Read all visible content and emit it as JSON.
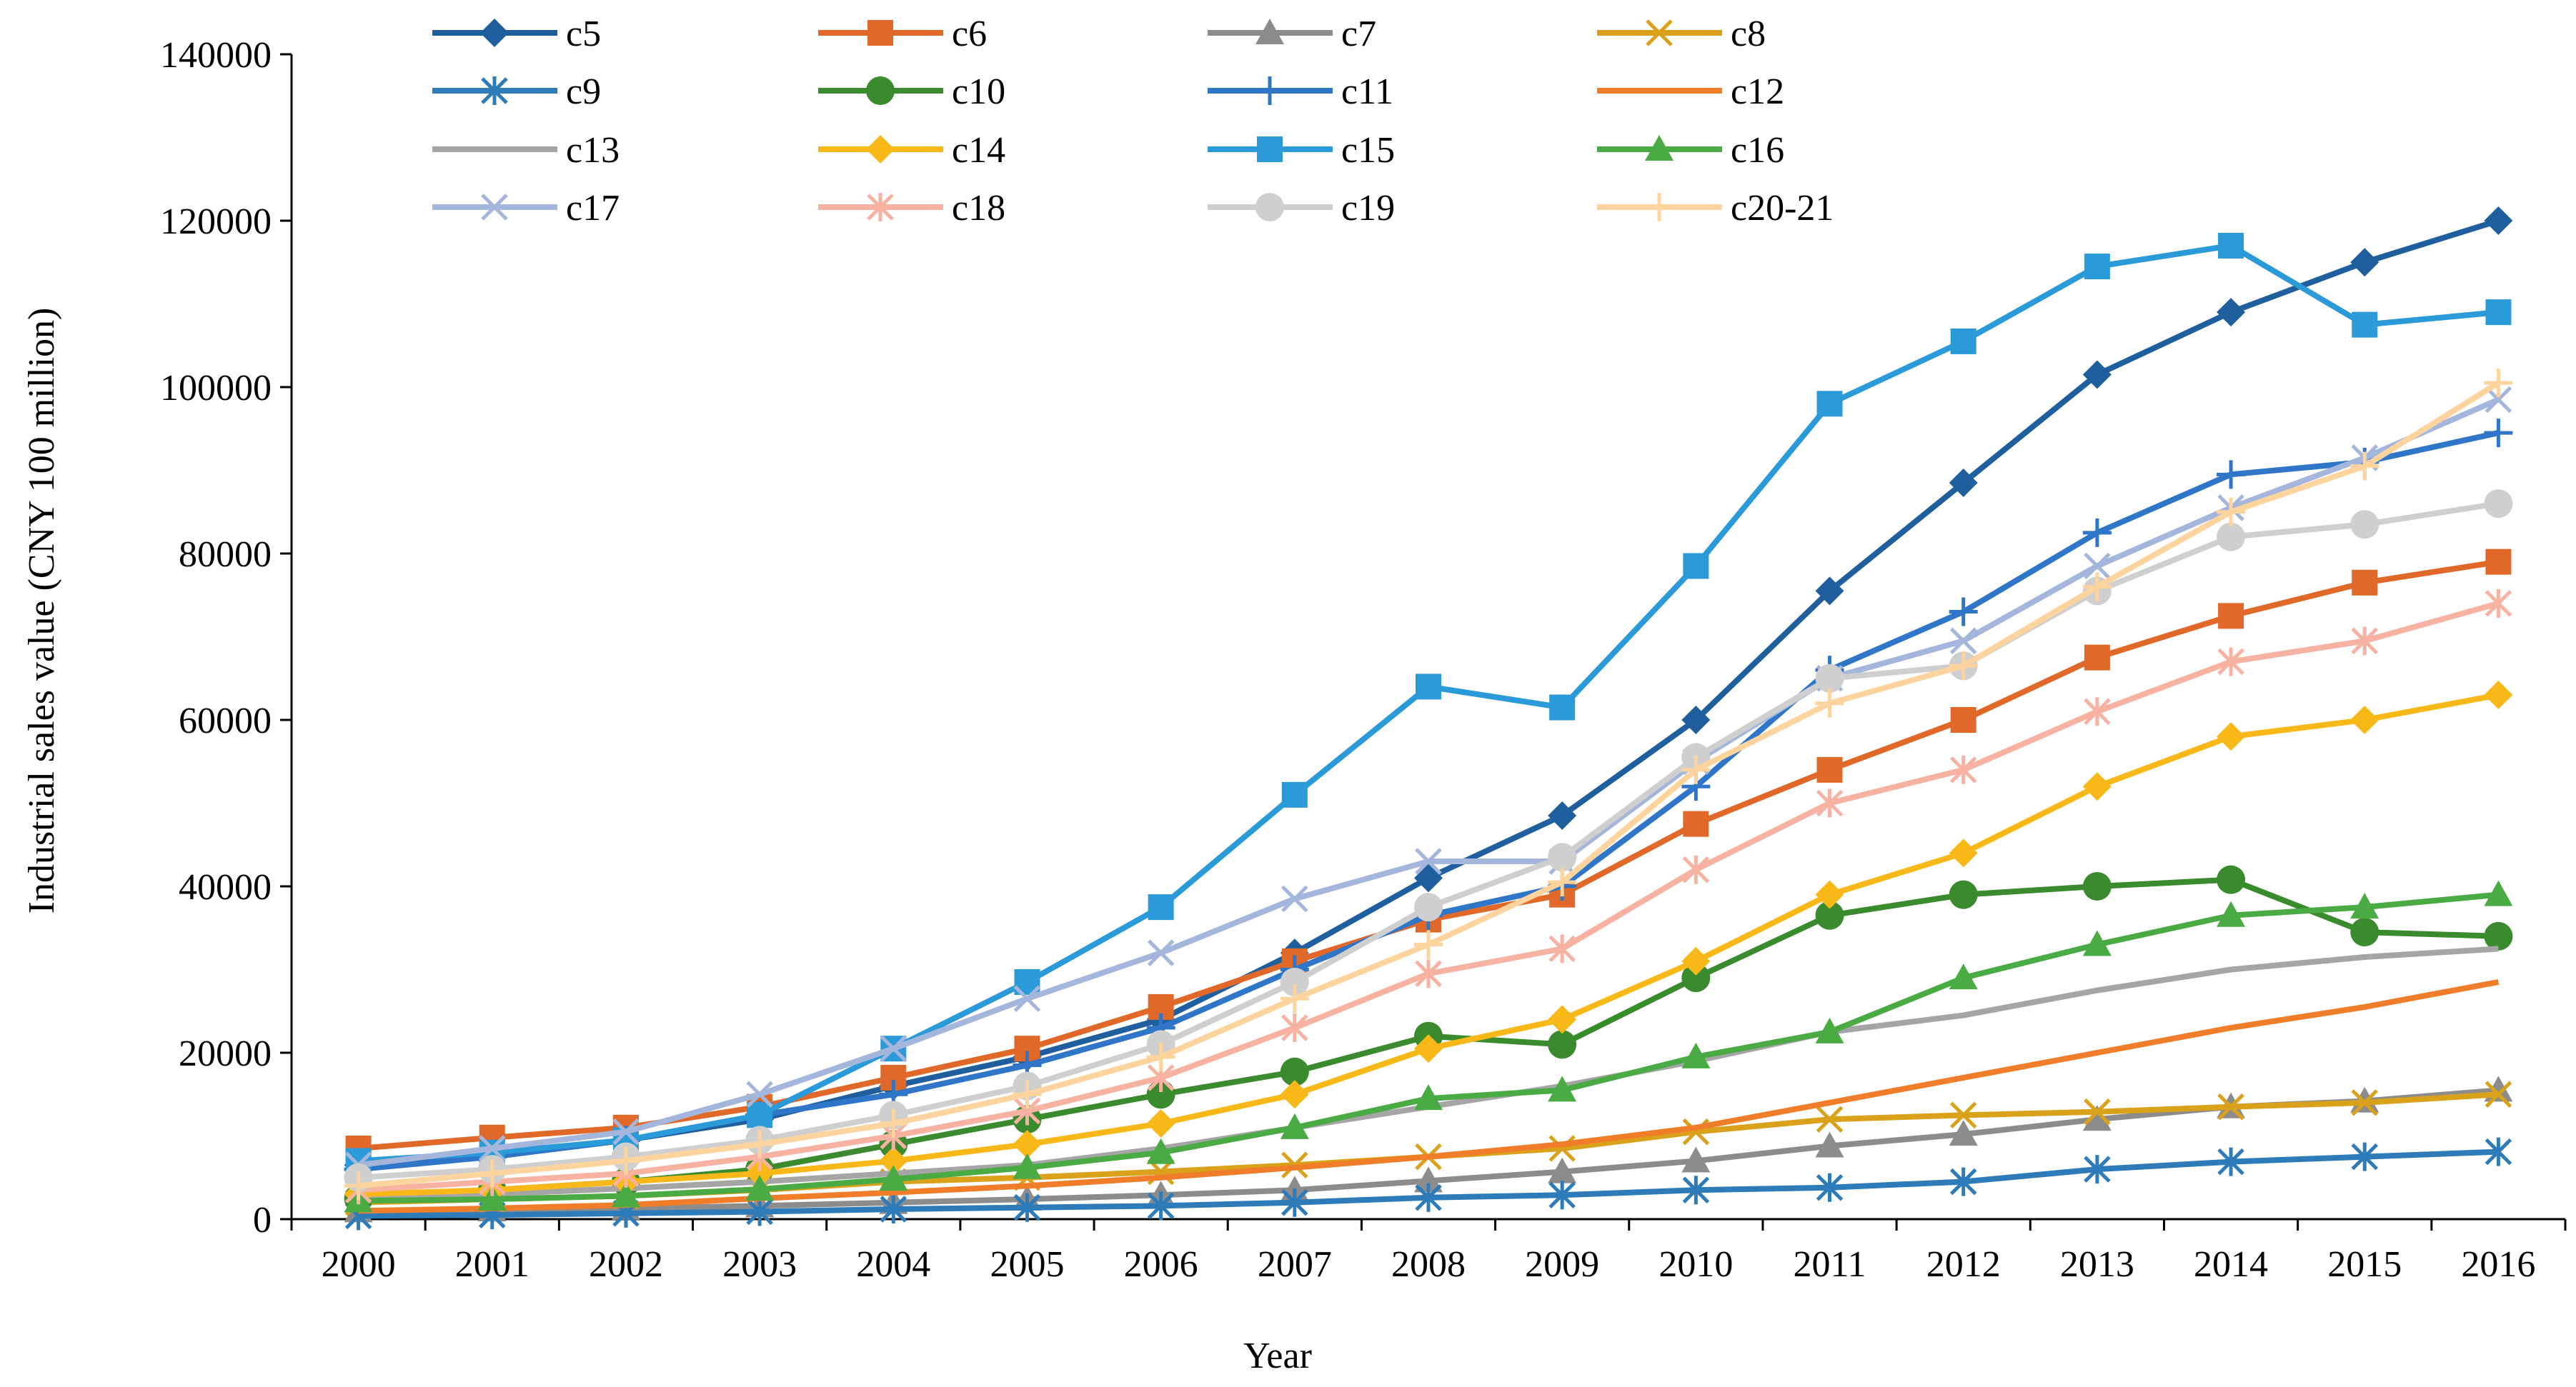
{
  "chart_data": {
    "type": "line",
    "title": "",
    "xlabel": "Year",
    "ylabel": "Industrial sales value (CNY 100 million)",
    "ylim": [
      0,
      140000
    ],
    "yticks": [
      "0",
      "20000",
      "40000",
      "60000",
      "80000",
      "100000",
      "120000",
      "140000"
    ],
    "categories": [
      "2000",
      "2001",
      "2002",
      "2003",
      "2004",
      "2005",
      "2006",
      "2007",
      "2008",
      "2009",
      "2010",
      "2011",
      "2012",
      "2013",
      "2014",
      "2015",
      "2016"
    ],
    "legend_position": "top",
    "series": [
      {
        "name": "c5",
        "color": "#1f5f9e",
        "marker": "diamond",
        "values": [
          6500,
          7500,
          9500,
          12000,
          16000,
          19500,
          24000,
          32000,
          41000,
          48500,
          60000,
          75500,
          88500,
          101500,
          109000,
          115000,
          120000
        ]
      },
      {
        "name": "c6",
        "color": "#e0692a",
        "marker": "square",
        "values": [
          8500,
          9800,
          11000,
          13500,
          17000,
          20500,
          25500,
          31000,
          36000,
          39000,
          47500,
          54000,
          60000,
          67500,
          72500,
          76500,
          79000
        ]
      },
      {
        "name": "c7",
        "color": "#8c8c8c",
        "marker": "triangle",
        "values": [
          1000,
          1100,
          1300,
          1600,
          2000,
          2400,
          2900,
          3500,
          4600,
          5700,
          7000,
          8800,
          10200,
          12000,
          13500,
          14200,
          15500
        ]
      },
      {
        "name": "c8",
        "color": "#d9a21a",
        "marker": "x",
        "values": [
          2000,
          2400,
          2800,
          3500,
          4500,
          5000,
          5700,
          6500,
          7500,
          8500,
          10500,
          12000,
          12500,
          12900,
          13500,
          14000,
          15000
        ]
      },
      {
        "name": "c9",
        "color": "#2d7bb8",
        "marker": "asterisk",
        "values": [
          400,
          500,
          700,
          900,
          1200,
          1400,
          1600,
          2000,
          2600,
          2900,
          3500,
          3800,
          4500,
          6000,
          6900,
          7500,
          8100
        ]
      },
      {
        "name": "c10",
        "color": "#3a8a2e",
        "marker": "circle",
        "values": [
          2500,
          3500,
          4500,
          6000,
          9000,
          12000,
          15000,
          17700,
          22000,
          21000,
          29000,
          36500,
          39000,
          40000,
          40800,
          34500,
          34000
        ]
      },
      {
        "name": "c11",
        "color": "#2f76c8",
        "marker": "plus",
        "values": [
          6000,
          7500,
          9500,
          12500,
          15000,
          18500,
          23000,
          30000,
          36500,
          40000,
          52000,
          66000,
          73000,
          82500,
          89500,
          91000,
          94500
        ]
      },
      {
        "name": "c12",
        "color": "#f07d2a",
        "marker": "none",
        "values": [
          1000,
          1300,
          1700,
          2500,
          3200,
          4000,
          5000,
          6200,
          7500,
          9000,
          11000,
          14000,
          17000,
          20000,
          23000,
          25500,
          28500
        ]
      },
      {
        "name": "c13",
        "color": "#a5a5a5",
        "marker": "none",
        "values": [
          2500,
          3000,
          3700,
          4500,
          5500,
          6500,
          8500,
          11000,
          13500,
          16000,
          19000,
          22500,
          24500,
          27500,
          30000,
          31500,
          32500
        ]
      },
      {
        "name": "c14",
        "color": "#f8b918",
        "marker": "diamond",
        "values": [
          3000,
          3500,
          4500,
          5500,
          7000,
          9000,
          11500,
          15000,
          20500,
          24000,
          31000,
          39000,
          44000,
          52000,
          58000,
          60000,
          63000
        ]
      },
      {
        "name": "c15",
        "color": "#2a9ad8",
        "marker": "square",
        "values": [
          7000,
          8000,
          9500,
          12500,
          20500,
          28500,
          37500,
          51000,
          64000,
          61500,
          78500,
          98000,
          105500,
          114500,
          117000,
          107500,
          109000
        ]
      },
      {
        "name": "c16",
        "color": "#4aab45",
        "marker": "triangle",
        "values": [
          2200,
          2400,
          2800,
          3600,
          4800,
          6200,
          8000,
          11000,
          14500,
          15500,
          19500,
          22500,
          29000,
          33000,
          36500,
          37500,
          39000
        ]
      },
      {
        "name": "c17",
        "color": "#a5b6dc",
        "marker": "x",
        "values": [
          6500,
          8500,
          10500,
          15000,
          20500,
          26500,
          32000,
          38500,
          43000,
          43000,
          55000,
          65000,
          69500,
          78500,
          85500,
          91500,
          98500
        ]
      },
      {
        "name": "c18",
        "color": "#f7b2a2",
        "marker": "asterisk",
        "values": [
          3500,
          4500,
          5500,
          7500,
          10000,
          13000,
          17000,
          23000,
          29500,
          32500,
          42000,
          50000,
          54000,
          61000,
          67000,
          69500,
          74000
        ]
      },
      {
        "name": "c19",
        "color": "#cfcfcf",
        "marker": "circle",
        "values": [
          5000,
          6000,
          7500,
          9500,
          12500,
          16000,
          21000,
          28500,
          37500,
          43500,
          55500,
          65000,
          66500,
          75500,
          82000,
          83500,
          86000
        ]
      },
      {
        "name": "c20-21",
        "color": "#fdd49e",
        "marker": "plus",
        "values": [
          4000,
          5500,
          7000,
          9000,
          11500,
          15000,
          19500,
          26500,
          33000,
          40500,
          54000,
          62000,
          66500,
          76000,
          85000,
          90500,
          100500
        ]
      }
    ]
  }
}
